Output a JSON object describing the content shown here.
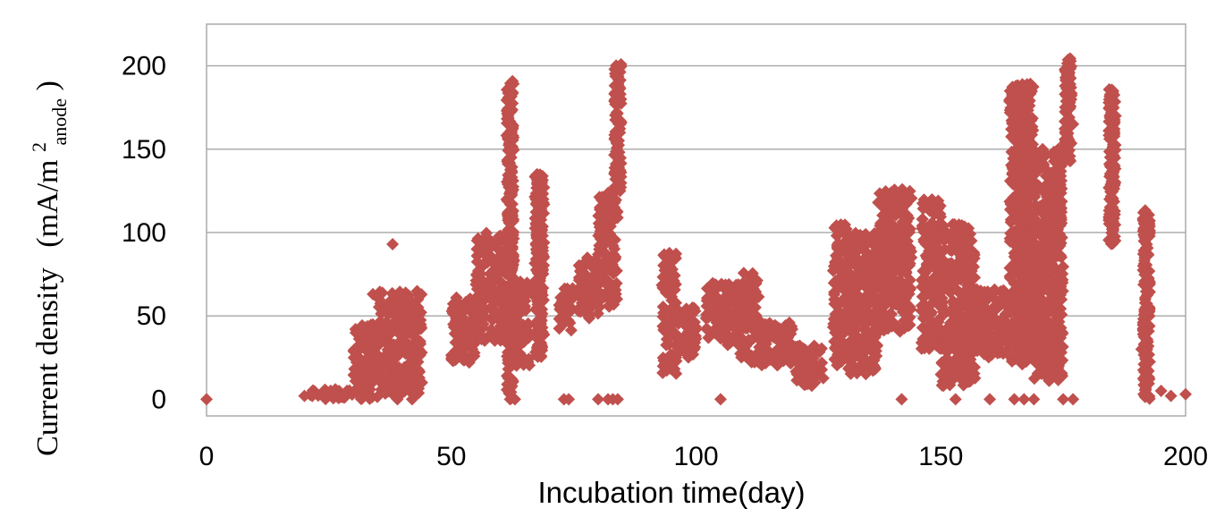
{
  "chart_data": {
    "type": "scatter",
    "title": "",
    "xlabel": "Incubation time(day)",
    "ylabel": {
      "main": "Current density",
      "unit_prefix": "(mA/m",
      "unit_sup": "2",
      "unit_sub": "anode",
      "unit_suffix": ")"
    },
    "xlim": [
      0,
      200
    ],
    "ylim": [
      -10,
      225
    ],
    "xticks": [
      0,
      50,
      100,
      150,
      200
    ],
    "yticks": [
      0,
      50,
      100,
      150,
      200
    ],
    "grid": "horizontal",
    "legend": "none",
    "marker": "diamond",
    "color": "#c0504d",
    "clusters": [
      {
        "x": [
          20,
          30
        ],
        "y": [
          0,
          6
        ]
      },
      {
        "x": [
          30,
          35
        ],
        "y": [
          0,
          45
        ]
      },
      {
        "x": [
          35,
          44
        ],
        "y": [
          3,
          65
        ]
      },
      {
        "x": [
          50,
          55
        ],
        "y": [
          22,
          62
        ]
      },
      {
        "x": [
          55,
          63
        ],
        "y": [
          35,
          100
        ]
      },
      {
        "x": [
          63,
          66
        ],
        "y": [
          20,
          75
        ]
      },
      {
        "x": [
          67,
          69
        ],
        "y": [
          28,
          135
        ]
      },
      {
        "x": [
          72,
          75
        ],
        "y": [
          40,
          68
        ]
      },
      {
        "x": [
          76,
          80
        ],
        "y": [
          48,
          85
        ]
      },
      {
        "x": [
          80,
          84
        ],
        "y": [
          55,
          124
        ]
      },
      {
        "x": [
          93,
          96
        ],
        "y": [
          15,
          88
        ]
      },
      {
        "x": [
          96,
          100
        ],
        "y": [
          25,
          58
        ]
      },
      {
        "x": [
          102,
          109
        ],
        "y": [
          32,
          70
        ]
      },
      {
        "x": [
          109,
          113
        ],
        "y": [
          22,
          76
        ]
      },
      {
        "x": [
          113,
          120
        ],
        "y": [
          20,
          46
        ]
      },
      {
        "x": [
          120,
          126
        ],
        "y": [
          8,
          33
        ]
      },
      {
        "x": [
          128,
          131
        ],
        "y": [
          20,
          105
        ]
      },
      {
        "x": [
          131,
          137
        ],
        "y": [
          15,
          100
        ]
      },
      {
        "x": [
          137,
          144
        ],
        "y": [
          40,
          126
        ]
      },
      {
        "x": [
          146,
          150
        ],
        "y": [
          30,
          120
        ]
      },
      {
        "x": [
          150,
          157
        ],
        "y": [
          8,
          105
        ]
      },
      {
        "x": [
          157,
          164
        ],
        "y": [
          25,
          66
        ]
      },
      {
        "x": [
          164,
          169
        ],
        "y": [
          22,
          190
        ]
      },
      {
        "x": [
          169,
          175
        ],
        "y": [
          10,
          150
        ]
      }
    ],
    "vertical_strips": [
      {
        "x": 62,
        "y": [
          0,
          192
        ]
      },
      {
        "x": 68,
        "y": [
          25,
          135
        ]
      },
      {
        "x": 84,
        "y": [
          125,
          201
        ]
      },
      {
        "x": 167,
        "y": [
          20,
          190
        ]
      },
      {
        "x": 174,
        "y": [
          105,
          150
        ]
      },
      {
        "x": 176,
        "y": [
          142,
          205
        ]
      },
      {
        "x": 185,
        "y": [
          93,
          187
        ]
      },
      {
        "x": 192,
        "y": [
          0,
          118
        ]
      }
    ],
    "points": [
      [
        0,
        0
      ],
      [
        20,
        2
      ],
      [
        31,
        40
      ],
      [
        34,
        63
      ],
      [
        38,
        93
      ],
      [
        39,
        0
      ],
      [
        42,
        0
      ],
      [
        44,
        10
      ],
      [
        62,
        0
      ],
      [
        63,
        0
      ],
      [
        73,
        0
      ],
      [
        74,
        0
      ],
      [
        80,
        0
      ],
      [
        82,
        0
      ],
      [
        83,
        0
      ],
      [
        84,
        0
      ],
      [
        105,
        0
      ],
      [
        142,
        0
      ],
      [
        153,
        0
      ],
      [
        160,
        0
      ],
      [
        165,
        0
      ],
      [
        167,
        0
      ],
      [
        169,
        0
      ],
      [
        175,
        0
      ],
      [
        177,
        0
      ],
      [
        177,
        165
      ],
      [
        191,
        30
      ],
      [
        195,
        5
      ],
      [
        197,
        2
      ],
      [
        200,
        3
      ]
    ]
  }
}
